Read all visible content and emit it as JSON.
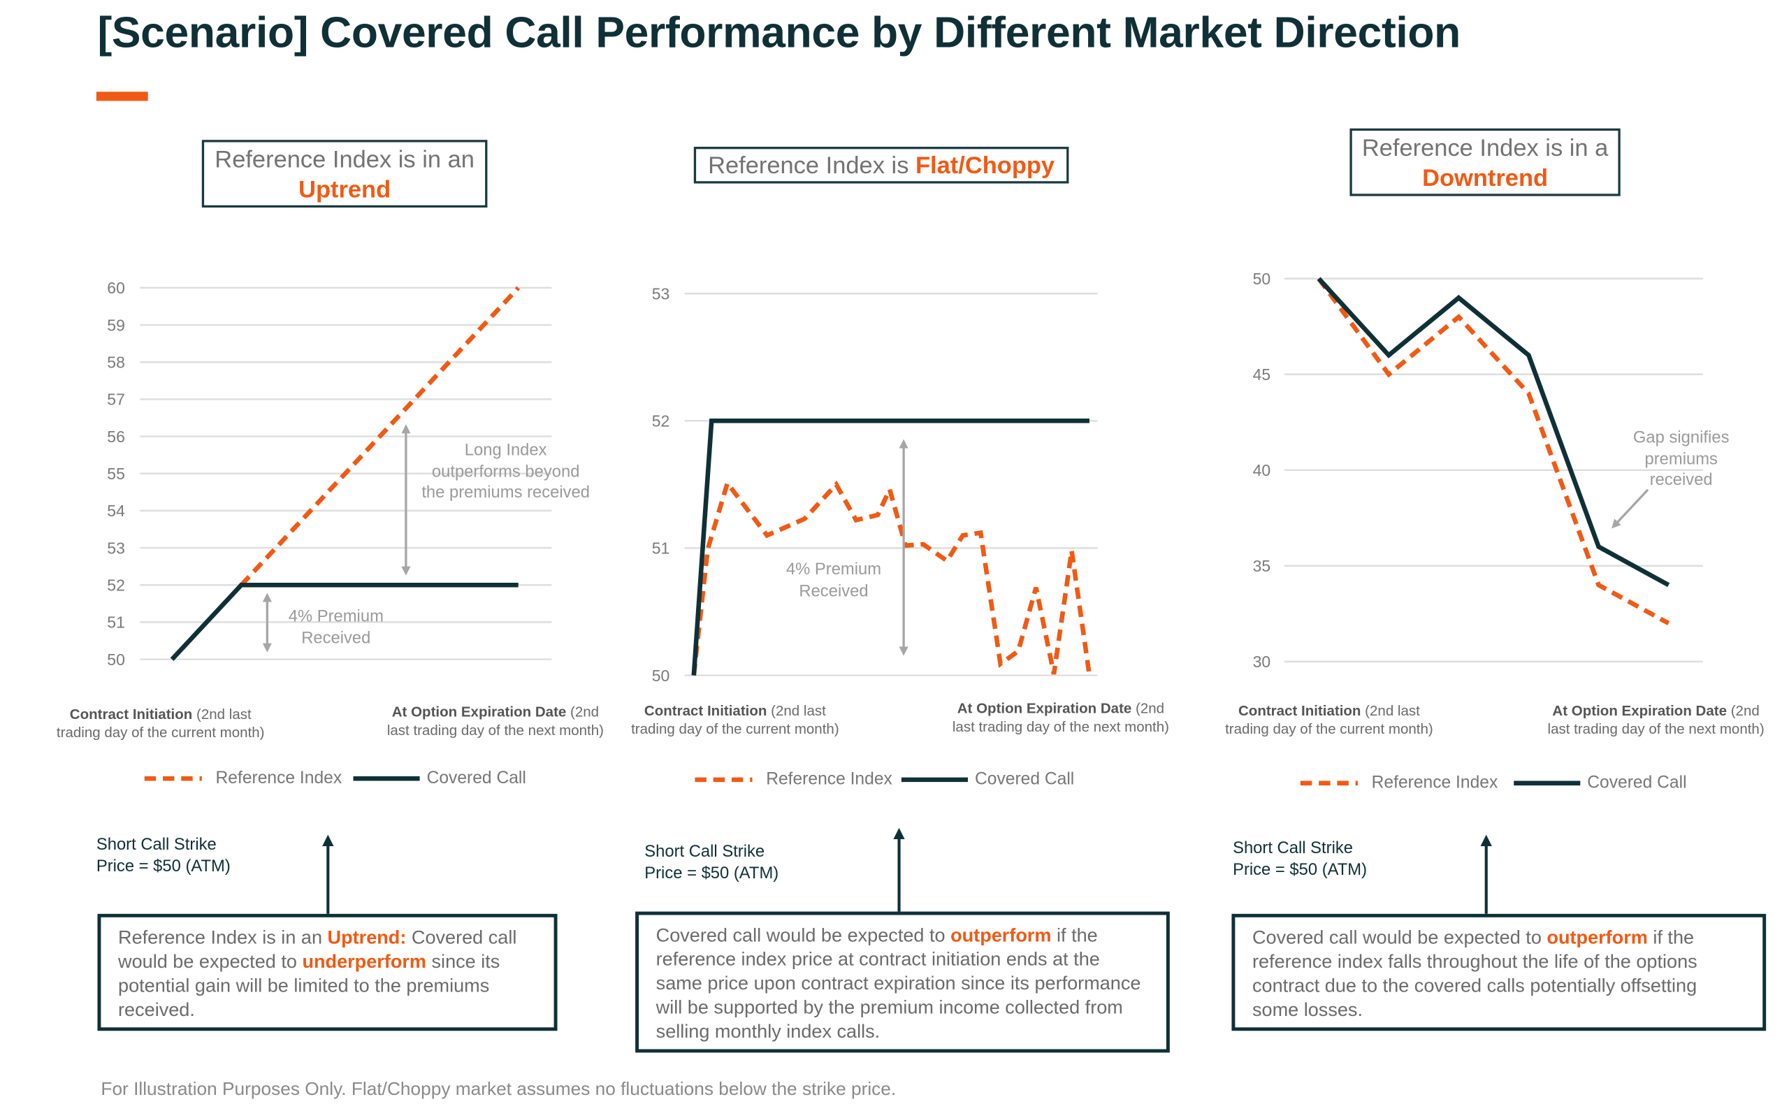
{
  "title": "[Scenario] Covered Call Performance by Different Market Direction",
  "colors": {
    "accent": "#f05a14",
    "dark": "#0f3036",
    "grid": "#dedede",
    "annotation": "#a6a6a6"
  },
  "legend": {
    "reference": "Reference Index",
    "covered": "Covered Call"
  },
  "x_labels": {
    "start_bold": "Contract Initiation",
    "start_rest": " (2nd last",
    "start_line2": "trading day of the current month)",
    "end_bold": "At Option Expiration Date",
    "end_rest": " (2nd",
    "end_line2": "last trading day of the next month)"
  },
  "strike": {
    "line1": "Short Call Strike",
    "line2": "Price = $50 (ATM)"
  },
  "panels": [
    {
      "header_prefix": "Reference Index is in an",
      "header_highlight": "Uptrend",
      "annotations": [
        "Long Index",
        "outperforms beyond",
        "the premiums received",
        "4% Premium",
        "Received"
      ],
      "description": {
        "pre": "Reference Index is in an ",
        "hl1": "Uptrend:",
        "mid": " Covered call would be expected to ",
        "hl2": "underperform",
        "post": " since its potential gain will be limited to the premiums received."
      }
    },
    {
      "header_prefix": "Reference Index is ",
      "header_highlight": "Flat/Choppy",
      "annotations": [
        "4% Premium",
        "Received"
      ],
      "description": {
        "pre": "Covered call would be expected to ",
        "hl1": "outperform",
        "post": " if the reference index price at contract initiation ends at the same price upon contract expiration since its performance will be supported by the premium income collected from selling monthly index calls."
      }
    },
    {
      "header_prefix": "Reference Index is in a",
      "header_highlight": "Downtrend",
      "annotations": [
        "Gap signifies",
        "premiums",
        "received"
      ],
      "description": {
        "pre": "Covered call would be expected to ",
        "hl1": "outperform",
        "post": " if the reference index falls throughout the life of the options contract due to the covered calls potentially offsetting some losses."
      }
    }
  ],
  "footer": "For Illustration Purposes Only. Flat/Choppy market assumes no fluctuations below the strike price.",
  "chart_data": [
    {
      "type": "line",
      "title": "Reference Index is in an Uptrend",
      "ylim": [
        50,
        60
      ],
      "yticks": [
        50,
        51,
        52,
        53,
        54,
        55,
        56,
        57,
        58,
        59,
        60
      ],
      "xlim": [
        0,
        5
      ],
      "grid": true,
      "legend": "bottom",
      "series": [
        {
          "name": "Reference Index",
          "style": "dashed",
          "x": [
            1,
            2,
            3,
            4,
            5
          ],
          "values": [
            52,
            54,
            56,
            58,
            60
          ]
        },
        {
          "name": "Covered Call",
          "style": "solid",
          "x": [
            0,
            1,
            2,
            3,
            4,
            5
          ],
          "values": [
            50,
            52,
            52,
            52,
            52,
            52
          ]
        }
      ]
    },
    {
      "type": "line",
      "title": "Reference Index is Flat/Choppy",
      "ylim": [
        50,
        53
      ],
      "yticks": [
        50,
        51,
        52,
        53
      ],
      "xlim": [
        0,
        20
      ],
      "grid": true,
      "legend": "bottom",
      "series": [
        {
          "name": "Reference Index",
          "style": "dashed",
          "x": [
            0,
            0.7,
            1.7,
            3.7,
            5.6,
            7.2,
            8.2,
            9.3,
            9.9,
            10.7,
            11.6,
            12.8,
            13.6,
            14.5,
            15.5,
            16.4,
            17.3,
            18.2,
            19.1,
            20
          ],
          "values": [
            50,
            50.99,
            51.51,
            51.1,
            51.23,
            51.5,
            51.22,
            51.26,
            51.46,
            51.02,
            51.03,
            50.9,
            51.1,
            51.12,
            50.09,
            50.19,
            50.69,
            50.01,
            50.98,
            50.0
          ]
        },
        {
          "name": "Covered Call",
          "style": "solid",
          "x": [
            0,
            0.9,
            20
          ],
          "values": [
            50,
            52,
            52
          ]
        }
      ]
    },
    {
      "type": "line",
      "title": "Reference Index is in a Downtrend",
      "ylim": [
        30,
        50
      ],
      "yticks": [
        30,
        35,
        40,
        45,
        50
      ],
      "xlim": [
        0,
        5
      ],
      "grid": true,
      "legend": "bottom",
      "series": [
        {
          "name": "Reference Index",
          "style": "dashed",
          "x": [
            0,
            1,
            2,
            3,
            4,
            5
          ],
          "values": [
            50,
            45,
            48,
            44,
            34,
            32
          ]
        },
        {
          "name": "Covered Call",
          "style": "solid",
          "x": [
            0,
            1,
            2,
            3,
            4,
            5
          ],
          "values": [
            50,
            46,
            49,
            46,
            36,
            34
          ]
        }
      ]
    }
  ]
}
